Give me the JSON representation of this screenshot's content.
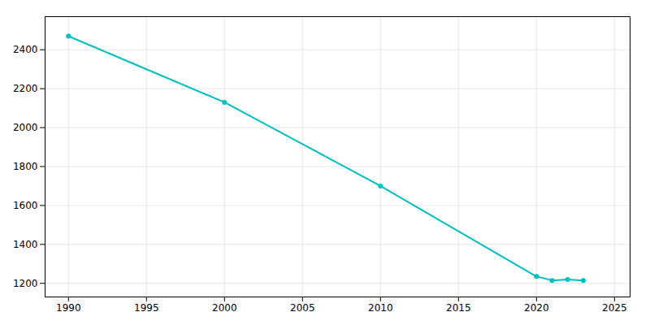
{
  "chart_data": {
    "type": "line",
    "x": [
      1990,
      2000,
      2010,
      2020,
      2021,
      2022,
      2023
    ],
    "values": [
      2470,
      2130,
      1700,
      1235,
      1215,
      1220,
      1215
    ],
    "color": "#00BFBF",
    "marker": "circle",
    "xlim": [
      1988.5,
      2026
    ],
    "ylim": [
      1130,
      2570
    ],
    "xticks": [
      1990,
      1995,
      2000,
      2005,
      2010,
      2015,
      2020,
      2025
    ],
    "yticks": [
      1200,
      1400,
      1600,
      1800,
      2000,
      2200,
      2400
    ],
    "grid": true
  }
}
